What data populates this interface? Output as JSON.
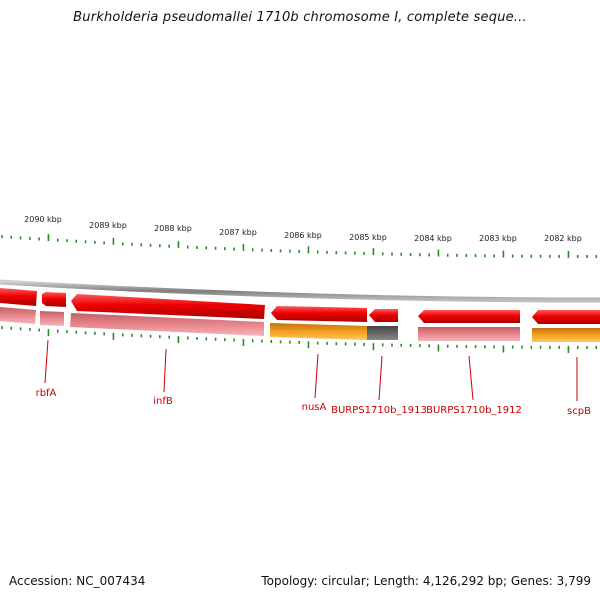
{
  "title": "Burkholderia pseudomallei 1710b chromosome I, complete seque...",
  "footer": {
    "accession": "Accession: NC_007434",
    "topology": "Topology: circular; Length: 4,126,292 bp; Genes: 3,799"
  },
  "scale": {
    "unit": "kbp",
    "ticks": [
      "2090 kbp",
      "2089 kbp",
      "2088 kbp",
      "2087 kbp",
      "2086 kbp",
      "2085 kbp",
      "2084 kbp",
      "2083 kbp",
      "2082 kbp"
    ]
  },
  "genes": [
    {
      "label": "rbfA"
    },
    {
      "label": "infB"
    },
    {
      "label": "nusA"
    },
    {
      "label": "BURPS1710b_1913"
    },
    {
      "label": "BURPS1710b_1912"
    },
    {
      "label": "scpB"
    }
  ],
  "colors": {
    "cds": "#ee0000",
    "cds_light": "#e8868c",
    "gene_orange": "#f5a020",
    "gene_gray": "#666666",
    "tick": "#2a8a2a",
    "label": "#cc0000",
    "backbone": "#888888"
  }
}
